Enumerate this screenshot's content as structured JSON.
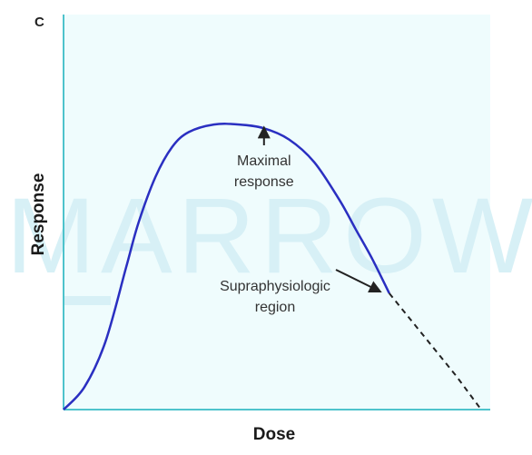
{
  "panel_label": "C",
  "watermark_text": "MARROW",
  "colors": {
    "plot_background": "#effcfd",
    "axis": "#4ec3cc",
    "curve": "#2a2fc1",
    "dashed": "#222222",
    "arrow": "#222222"
  },
  "chart_data": {
    "type": "line",
    "title": "",
    "xlabel": "Dose",
    "ylabel": "Response",
    "grid": false,
    "xlim": [
      0,
      1
    ],
    "ylim": [
      0,
      1
    ],
    "series": [
      {
        "style": "solid",
        "x": [
          0.0,
          0.05,
          0.1,
          0.15,
          0.18,
          0.22,
          0.26,
          0.3,
          0.36,
          0.42,
          0.48,
          0.54,
          0.6,
          0.66,
          0.7,
          0.74,
          0.78
        ],
        "y": [
          0.0,
          0.06,
          0.18,
          0.38,
          0.5,
          0.62,
          0.7,
          0.74,
          0.76,
          0.76,
          0.75,
          0.72,
          0.66,
          0.56,
          0.48,
          0.4,
          0.31
        ]
      },
      {
        "style": "dashed",
        "x": [
          0.78,
          0.86,
          0.94,
          1.0
        ],
        "y": [
          0.31,
          0.2,
          0.09,
          0.0
        ]
      }
    ],
    "annotations": [
      {
        "text_lines": [
          "Maximal",
          "response"
        ],
        "points_to": [
          0.48,
          0.76
        ]
      },
      {
        "text_lines": [
          "Supraphysiologic",
          "region"
        ],
        "points_to": [
          0.77,
          0.33
        ]
      }
    ]
  }
}
